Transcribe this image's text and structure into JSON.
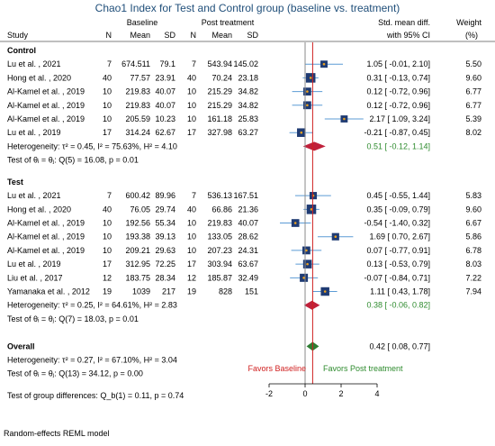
{
  "chart_data": {
    "type": "forest",
    "title": "Chao1 Index for Test and Control group (baseline vs. treatment)",
    "headers": {
      "study": "Study",
      "baseline": "Baseline",
      "post": "Post treatment",
      "n": "N",
      "mean": "Mean",
      "sd": "SD",
      "effect_line1": "Std. mean diff.",
      "effect_line2": "with 95% CI",
      "weight_line1": "Weight",
      "weight_line2": "(%)"
    },
    "groups": [
      {
        "name": "Control",
        "studies": [
          {
            "study": "Lu et al. , 2021",
            "n1": "7",
            "mean1": "674.511",
            "sd1": "79.1",
            "n2": "7",
            "mean2": "543.94",
            "sd2": "145.02",
            "smd": 1.05,
            "lo": -0.01,
            "hi": 2.1,
            "ci_text": "1.05 [ -0.01, 2.10]",
            "weight": "5.50"
          },
          {
            "study": "Hong et al. , 2020",
            "n1": "40",
            "mean1": "77.57",
            "sd1": "23.91",
            "n2": "40",
            "mean2": "70.24",
            "sd2": "23.18",
            "smd": 0.31,
            "lo": -0.13,
            "hi": 0.74,
            "ci_text": "0.31 [ -0.13, 0.74]",
            "weight": "9.60"
          },
          {
            "study": "Al-Kamel et al. , 2019",
            "n1": "10",
            "mean1": "219.83",
            "sd1": "40.07",
            "n2": "10",
            "mean2": "215.29",
            "sd2": "34.82",
            "smd": 0.12,
            "lo": -0.72,
            "hi": 0.96,
            "ci_text": "0.12 [ -0.72, 0.96]",
            "weight": "6.77"
          },
          {
            "study": "Al-Kamel et al. , 2019",
            "n1": "10",
            "mean1": "219.83",
            "sd1": "40.07",
            "n2": "10",
            "mean2": "215.29",
            "sd2": "34.82",
            "smd": 0.12,
            "lo": -0.72,
            "hi": 0.96,
            "ci_text": "0.12 [ -0.72, 0.96]",
            "weight": "6.77"
          },
          {
            "study": "Al-Kamel et al. , 2019",
            "n1": "10",
            "mean1": "205.59",
            "sd1": "10.23",
            "n2": "10",
            "mean2": "161.18",
            "sd2": "25.83",
            "smd": 2.17,
            "lo": 1.09,
            "hi": 3.24,
            "ci_text": "2.17 [ 1.09, 3.24]",
            "weight": "5.39"
          },
          {
            "study": "Lu et al. , 2019",
            "n1": "17",
            "mean1": "314.24",
            "sd1": "62.67",
            "n2": "17",
            "mean2": "327.98",
            "sd2": "63.27",
            "smd": -0.21,
            "lo": -0.87,
            "hi": 0.45,
            "ci_text": "-0.21 [ -0.87, 0.45]",
            "weight": "8.02"
          }
        ],
        "heterogeneity": "Heterogeneity: τ² = 0.45, I² = 75.63%, H² = 4.10",
        "test": "Test of θᵢ = θⱼ: Q(5) = 16.08, p = 0.01",
        "pooled": {
          "smd": 0.51,
          "lo": -0.12,
          "hi": 1.14,
          "ci_text": "0.51 [ -0.12, 1.14]"
        }
      },
      {
        "name": "Test",
        "studies": [
          {
            "study": "Lu et al. , 2021",
            "n1": "7",
            "mean1": "600.42",
            "sd1": "89.96",
            "n2": "7",
            "mean2": "536.13",
            "sd2": "167.51",
            "smd": 0.45,
            "lo": -0.55,
            "hi": 1.44,
            "ci_text": "0.45 [ -0.55, 1.44]",
            "weight": "5.83"
          },
          {
            "study": "Hong et al. , 2020",
            "n1": "40",
            "mean1": "76.05",
            "sd1": "29.74",
            "n2": "40",
            "mean2": "66.86",
            "sd2": "21.36",
            "smd": 0.35,
            "lo": -0.09,
            "hi": 0.79,
            "ci_text": "0.35 [ -0.09, 0.79]",
            "weight": "9.60"
          },
          {
            "study": "Al-Kamel et al. , 2019",
            "n1": "10",
            "mean1": "192.56",
            "sd1": "55.34",
            "n2": "10",
            "mean2": "219.83",
            "sd2": "40.07",
            "smd": -0.54,
            "lo": -1.4,
            "hi": 0.32,
            "ci_text": "-0.54 [ -1.40, 0.32]",
            "weight": "6.67"
          },
          {
            "study": "Al-Kamel et al. , 2019",
            "n1": "10",
            "mean1": "193.38",
            "sd1": "39.13",
            "n2": "10",
            "mean2": "133.05",
            "sd2": "28.62",
            "smd": 1.69,
            "lo": 0.7,
            "hi": 2.67,
            "ci_text": "1.69 [ 0.70, 2.67]",
            "weight": "5.86"
          },
          {
            "study": "Al-Kamel et al. , 2019",
            "n1": "10",
            "mean1": "209.21",
            "sd1": "29.63",
            "n2": "10",
            "mean2": "207.23",
            "sd2": "24.31",
            "smd": 0.07,
            "lo": -0.77,
            "hi": 0.91,
            "ci_text": "0.07 [ -0.77, 0.91]",
            "weight": "6.78"
          },
          {
            "study": "Lu et al. , 2019",
            "n1": "17",
            "mean1": "312.95",
            "sd1": "72.25",
            "n2": "17",
            "mean2": "303.94",
            "sd2": "63.67",
            "smd": 0.13,
            "lo": -0.53,
            "hi": 0.79,
            "ci_text": "0.13 [ -0.53, 0.79]",
            "weight": "8.03"
          },
          {
            "study": "Liu et al. , 2017",
            "n1": "12",
            "mean1": "183.75",
            "sd1": "28.34",
            "n2": "12",
            "mean2": "185.87",
            "sd2": "32.49",
            "smd": -0.07,
            "lo": -0.84,
            "hi": 0.71,
            "ci_text": "-0.07 [ -0.84, 0.71]",
            "weight": "7.22"
          },
          {
            "study": "Yamanaka et al. , 2012",
            "n1": "19",
            "mean1": "1039",
            "sd1": "217",
            "n2": "19",
            "mean2": "828",
            "sd2": "151",
            "smd": 1.11,
            "lo": 0.43,
            "hi": 1.78,
            "ci_text": "1.11 [ 0.43, 1.78]",
            "weight": "7.94"
          }
        ],
        "heterogeneity": "Heterogeneity: τ² = 0.25, I² = 64.61%, H² = 2.83",
        "test": "Test of θᵢ = θⱼ: Q(7) = 18.03, p = 0.01",
        "pooled": {
          "smd": 0.38,
          "lo": -0.06,
          "hi": 0.82,
          "ci_text": "0.38 [ -0.06, 0.82]"
        }
      }
    ],
    "overall": {
      "label": "Overall",
      "smd": 0.42,
      "lo": 0.08,
      "hi": 0.77,
      "ci_text": "0.42 [ 0.08, 0.77]",
      "heterogeneity": "Heterogeneity: τ² = 0.27, I² = 67.10%, H² = 3.04",
      "test": "Test of θᵢ = θⱼ: Q(13) = 34.12, p = 0.00",
      "group_test": "Test of group differences: Q_b(1) = 0.11, p = 0.74"
    },
    "favors_left": "Favors Baseline",
    "favors_right": "Favors Post treatment",
    "xaxis": {
      "ticks": [
        -2,
        0,
        2,
        4
      ],
      "xlim": [
        -2,
        4
      ]
    },
    "footnote": "Random-effects REML model",
    "colors": {
      "title": "#1f4e79",
      "marker": "#1f3b73",
      "marker_dot": "#e8a020",
      "ci": "#5b9bd5",
      "pooled_group": "#c0203a",
      "pooled_overall": "#2e7d32",
      "pooled_text": "#2e8b2e",
      "favors_left": "#d02020",
      "favors_right": "#2e8b2e",
      "null_line": "#888888",
      "overall_line": "#d02020"
    }
  }
}
